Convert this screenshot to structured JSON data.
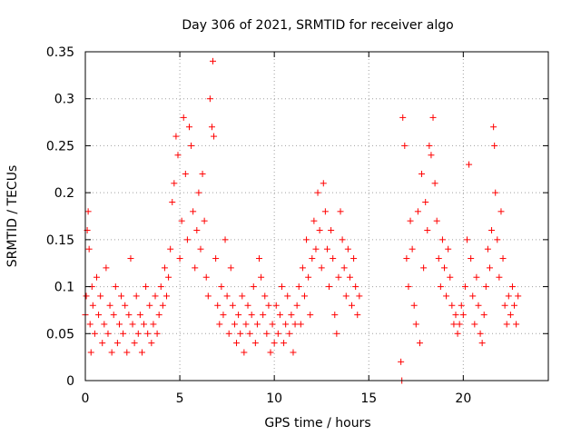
{
  "chart_data": {
    "type": "scatter",
    "title": "Day 306 of 2021, SRMTID for receiver algo",
    "xlabel": "GPS time / hours",
    "ylabel": "SRMTID / TECUs",
    "xlim": [
      0,
      24.5
    ],
    "ylim": [
      0,
      0.35
    ],
    "xticks": [
      0,
      5,
      10,
      15,
      20
    ],
    "xtick_labels": [
      "0",
      "5",
      "10",
      "15",
      "20"
    ],
    "yticks": [
      0,
      0.05,
      0.1,
      0.15,
      0.2,
      0.25,
      0.3,
      0.35
    ],
    "ytick_labels": [
      "0",
      "0.05",
      "0.1",
      "0.15",
      "0.2",
      "0.25",
      "0.3",
      "0.35"
    ],
    "grid": true,
    "marker": "+",
    "color": "#ff0000",
    "series": [
      {
        "name": "SRMTID",
        "points": [
          [
            0.0,
            0.07
          ],
          [
            0.05,
            0.09
          ],
          [
            0.1,
            0.16
          ],
          [
            0.15,
            0.18
          ],
          [
            0.2,
            0.14
          ],
          [
            0.25,
            0.06
          ],
          [
            0.3,
            0.03
          ],
          [
            0.35,
            0.1
          ],
          [
            0.4,
            0.08
          ],
          [
            0.5,
            0.05
          ],
          [
            0.6,
            0.11
          ],
          [
            0.7,
            0.07
          ],
          [
            0.8,
            0.09
          ],
          [
            0.9,
            0.04
          ],
          [
            1.0,
            0.06
          ],
          [
            1.1,
            0.12
          ],
          [
            1.2,
            0.05
          ],
          [
            1.3,
            0.08
          ],
          [
            1.4,
            0.03
          ],
          [
            1.5,
            0.07
          ],
          [
            1.6,
            0.1
          ],
          [
            1.7,
            0.04
          ],
          [
            1.8,
            0.06
          ],
          [
            1.9,
            0.09
          ],
          [
            2.0,
            0.05
          ],
          [
            2.1,
            0.08
          ],
          [
            2.2,
            0.03
          ],
          [
            2.3,
            0.07
          ],
          [
            2.4,
            0.13
          ],
          [
            2.5,
            0.06
          ],
          [
            2.6,
            0.04
          ],
          [
            2.7,
            0.09
          ],
          [
            2.8,
            0.05
          ],
          [
            2.9,
            0.07
          ],
          [
            3.0,
            0.03
          ],
          [
            3.1,
            0.06
          ],
          [
            3.2,
            0.1
          ],
          [
            3.3,
            0.05
          ],
          [
            3.4,
            0.08
          ],
          [
            3.5,
            0.04
          ],
          [
            3.6,
            0.06
          ],
          [
            3.7,
            0.09
          ],
          [
            3.8,
            0.05
          ],
          [
            3.9,
            0.07
          ],
          [
            4.0,
            0.1
          ],
          [
            4.1,
            0.08
          ],
          [
            4.2,
            0.12
          ],
          [
            4.3,
            0.09
          ],
          [
            4.4,
            0.11
          ],
          [
            4.5,
            0.14
          ],
          [
            4.6,
            0.19
          ],
          [
            4.7,
            0.21
          ],
          [
            4.8,
            0.26
          ],
          [
            4.9,
            0.24
          ],
          [
            5.0,
            0.13
          ],
          [
            5.1,
            0.17
          ],
          [
            5.2,
            0.28
          ],
          [
            5.3,
            0.22
          ],
          [
            5.4,
            0.15
          ],
          [
            5.5,
            0.27
          ],
          [
            5.6,
            0.25
          ],
          [
            5.7,
            0.18
          ],
          [
            5.8,
            0.12
          ],
          [
            5.9,
            0.16
          ],
          [
            6.0,
            0.2
          ],
          [
            6.1,
            0.14
          ],
          [
            6.2,
            0.22
          ],
          [
            6.3,
            0.17
          ],
          [
            6.4,
            0.11
          ],
          [
            6.5,
            0.09
          ],
          [
            6.6,
            0.3
          ],
          [
            6.7,
            0.27
          ],
          [
            6.75,
            0.34
          ],
          [
            6.8,
            0.26
          ],
          [
            6.9,
            0.13
          ],
          [
            7.0,
            0.08
          ],
          [
            7.1,
            0.06
          ],
          [
            7.2,
            0.1
          ],
          [
            7.3,
            0.07
          ],
          [
            7.4,
            0.15
          ],
          [
            7.5,
            0.09
          ],
          [
            7.6,
            0.05
          ],
          [
            7.7,
            0.12
          ],
          [
            7.8,
            0.08
          ],
          [
            7.9,
            0.06
          ],
          [
            8.0,
            0.04
          ],
          [
            8.1,
            0.07
          ],
          [
            8.2,
            0.05
          ],
          [
            8.3,
            0.09
          ],
          [
            8.4,
            0.03
          ],
          [
            8.5,
            0.06
          ],
          [
            8.6,
            0.08
          ],
          [
            8.7,
            0.05
          ],
          [
            8.8,
            0.07
          ],
          [
            8.9,
            0.1
          ],
          [
            9.0,
            0.04
          ],
          [
            9.1,
            0.06
          ],
          [
            9.2,
            0.13
          ],
          [
            9.3,
            0.11
          ],
          [
            9.4,
            0.07
          ],
          [
            9.5,
            0.09
          ],
          [
            9.6,
            0.05
          ],
          [
            9.7,
            0.08
          ],
          [
            9.8,
            0.03
          ],
          [
            9.9,
            0.06
          ],
          [
            10.0,
            0.04
          ],
          [
            10.1,
            0.08
          ],
          [
            10.2,
            0.05
          ],
          [
            10.3,
            0.07
          ],
          [
            10.4,
            0.1
          ],
          [
            10.5,
            0.04
          ],
          [
            10.6,
            0.06
          ],
          [
            10.7,
            0.09
          ],
          [
            10.8,
            0.05
          ],
          [
            10.9,
            0.07
          ],
          [
            11.0,
            0.03
          ],
          [
            11.1,
            0.06
          ],
          [
            11.2,
            0.08
          ],
          [
            11.3,
            0.1
          ],
          [
            11.4,
            0.06
          ],
          [
            11.5,
            0.12
          ],
          [
            11.6,
            0.09
          ],
          [
            11.7,
            0.15
          ],
          [
            11.8,
            0.11
          ],
          [
            11.9,
            0.07
          ],
          [
            12.0,
            0.13
          ],
          [
            12.1,
            0.17
          ],
          [
            12.2,
            0.14
          ],
          [
            12.3,
            0.2
          ],
          [
            12.4,
            0.16
          ],
          [
            12.5,
            0.12
          ],
          [
            12.6,
            0.21
          ],
          [
            12.7,
            0.18
          ],
          [
            12.8,
            0.14
          ],
          [
            12.9,
            0.1
          ],
          [
            13.0,
            0.16
          ],
          [
            13.1,
            0.13
          ],
          [
            13.2,
            0.07
          ],
          [
            13.3,
            0.05
          ],
          [
            13.4,
            0.11
          ],
          [
            13.5,
            0.18
          ],
          [
            13.6,
            0.15
          ],
          [
            13.7,
            0.12
          ],
          [
            13.8,
            0.09
          ],
          [
            13.9,
            0.14
          ],
          [
            14.0,
            0.11
          ],
          [
            14.1,
            0.08
          ],
          [
            14.2,
            0.13
          ],
          [
            14.3,
            0.1
          ],
          [
            14.4,
            0.07
          ],
          [
            14.5,
            0.09
          ],
          [
            16.7,
            0.02
          ],
          [
            16.75,
            0.0
          ],
          [
            16.8,
            0.28
          ],
          [
            16.9,
            0.25
          ],
          [
            17.0,
            0.13
          ],
          [
            17.1,
            0.1
          ],
          [
            17.2,
            0.17
          ],
          [
            17.3,
            0.14
          ],
          [
            17.4,
            0.08
          ],
          [
            17.5,
            0.06
          ],
          [
            17.6,
            0.18
          ],
          [
            17.7,
            0.04
          ],
          [
            17.8,
            0.22
          ],
          [
            17.9,
            0.12
          ],
          [
            18.0,
            0.19
          ],
          [
            18.1,
            0.16
          ],
          [
            18.2,
            0.25
          ],
          [
            18.3,
            0.24
          ],
          [
            18.4,
            0.28
          ],
          [
            18.5,
            0.21
          ],
          [
            18.6,
            0.17
          ],
          [
            18.7,
            0.13
          ],
          [
            18.8,
            0.1
          ],
          [
            18.9,
            0.15
          ],
          [
            19.0,
            0.12
          ],
          [
            19.1,
            0.09
          ],
          [
            19.2,
            0.14
          ],
          [
            19.3,
            0.11
          ],
          [
            19.4,
            0.08
          ],
          [
            19.5,
            0.06
          ],
          [
            19.6,
            0.07
          ],
          [
            19.7,
            0.05
          ],
          [
            19.8,
            0.06
          ],
          [
            19.9,
            0.08
          ],
          [
            20.0,
            0.07
          ],
          [
            20.1,
            0.1
          ],
          [
            20.2,
            0.15
          ],
          [
            20.3,
            0.23
          ],
          [
            20.4,
            0.13
          ],
          [
            20.5,
            0.09
          ],
          [
            20.6,
            0.06
          ],
          [
            20.7,
            0.11
          ],
          [
            20.8,
            0.08
          ],
          [
            20.9,
            0.05
          ],
          [
            21.0,
            0.04
          ],
          [
            21.1,
            0.07
          ],
          [
            21.2,
            0.1
          ],
          [
            21.3,
            0.14
          ],
          [
            21.4,
            0.12
          ],
          [
            21.5,
            0.16
          ],
          [
            21.6,
            0.27
          ],
          [
            21.65,
            0.25
          ],
          [
            21.7,
            0.2
          ],
          [
            21.8,
            0.15
          ],
          [
            21.9,
            0.11
          ],
          [
            22.0,
            0.18
          ],
          [
            22.1,
            0.13
          ],
          [
            22.2,
            0.08
          ],
          [
            22.3,
            0.06
          ],
          [
            22.4,
            0.09
          ],
          [
            22.5,
            0.07
          ],
          [
            22.6,
            0.1
          ],
          [
            22.7,
            0.08
          ],
          [
            22.8,
            0.06
          ],
          [
            22.9,
            0.09
          ]
        ]
      }
    ]
  }
}
